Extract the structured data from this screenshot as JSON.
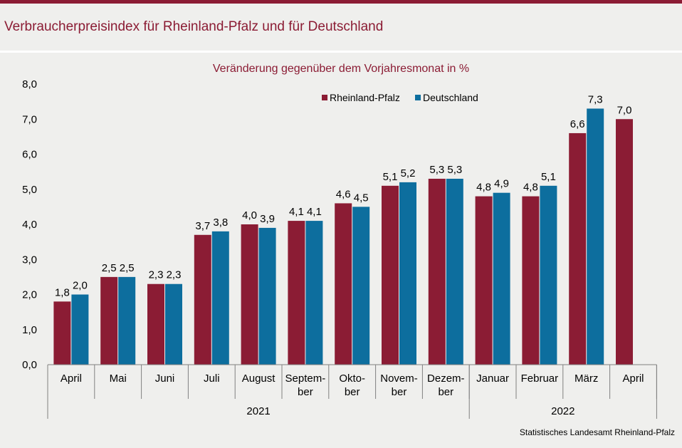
{
  "page_title": "Verbraucherpreisindex für Rheinland-Pfalz und für Deutschland",
  "source": "Statistisches Landesamt Rheinland-Pfalz",
  "chart_data": {
    "type": "bar",
    "subtitle": "Veränderung gegenüber dem Vorjahresmonat in %",
    "categories": [
      [
        "April"
      ],
      [
        "Mai"
      ],
      [
        "Juni"
      ],
      [
        "Juli"
      ],
      [
        "August"
      ],
      [
        "Septem-",
        "ber"
      ],
      [
        "Okto-",
        "ber"
      ],
      [
        "Novem-",
        "ber"
      ],
      [
        "Dezem-",
        "ber"
      ],
      [
        "Januar"
      ],
      [
        "Februar"
      ],
      [
        "März"
      ],
      [
        "April"
      ]
    ],
    "year_groups": [
      {
        "label": "2021",
        "from": 0,
        "to": 8
      },
      {
        "label": "2022",
        "from": 9,
        "to": 12
      }
    ],
    "series": [
      {
        "name": "Rheinland-Pfalz",
        "color": "#8b1c34",
        "values": [
          1.8,
          2.5,
          2.3,
          3.7,
          4.0,
          4.1,
          4.6,
          5.1,
          5.3,
          4.8,
          4.8,
          6.6,
          7.0
        ],
        "labels": [
          "1,8",
          "2,5",
          "2,3",
          "3,7",
          "4,0",
          "4,1",
          "4,6",
          "5,1",
          "5,3",
          "4,8",
          "4,8",
          "6,6",
          "7,0"
        ]
      },
      {
        "name": "Deutschland",
        "color": "#0d6e9e",
        "values": [
          2.0,
          2.5,
          2.3,
          3.8,
          3.9,
          4.1,
          4.5,
          5.2,
          5.3,
          4.9,
          5.1,
          7.3,
          null
        ],
        "labels": [
          "2,0",
          "2,5",
          "2,3",
          "3,8",
          "3,9",
          "4,1",
          "4,5",
          "5,2",
          "5,3",
          "4,9",
          "5,1",
          "7,3",
          ""
        ]
      }
    ],
    "y_ticks": [
      "0,0",
      "1,0",
      "2,0",
      "3,0",
      "4,0",
      "5,0",
      "6,0",
      "7,0",
      "8,0"
    ],
    "ylim": [
      0,
      8
    ],
    "grid": false,
    "legend": "top-center"
  }
}
